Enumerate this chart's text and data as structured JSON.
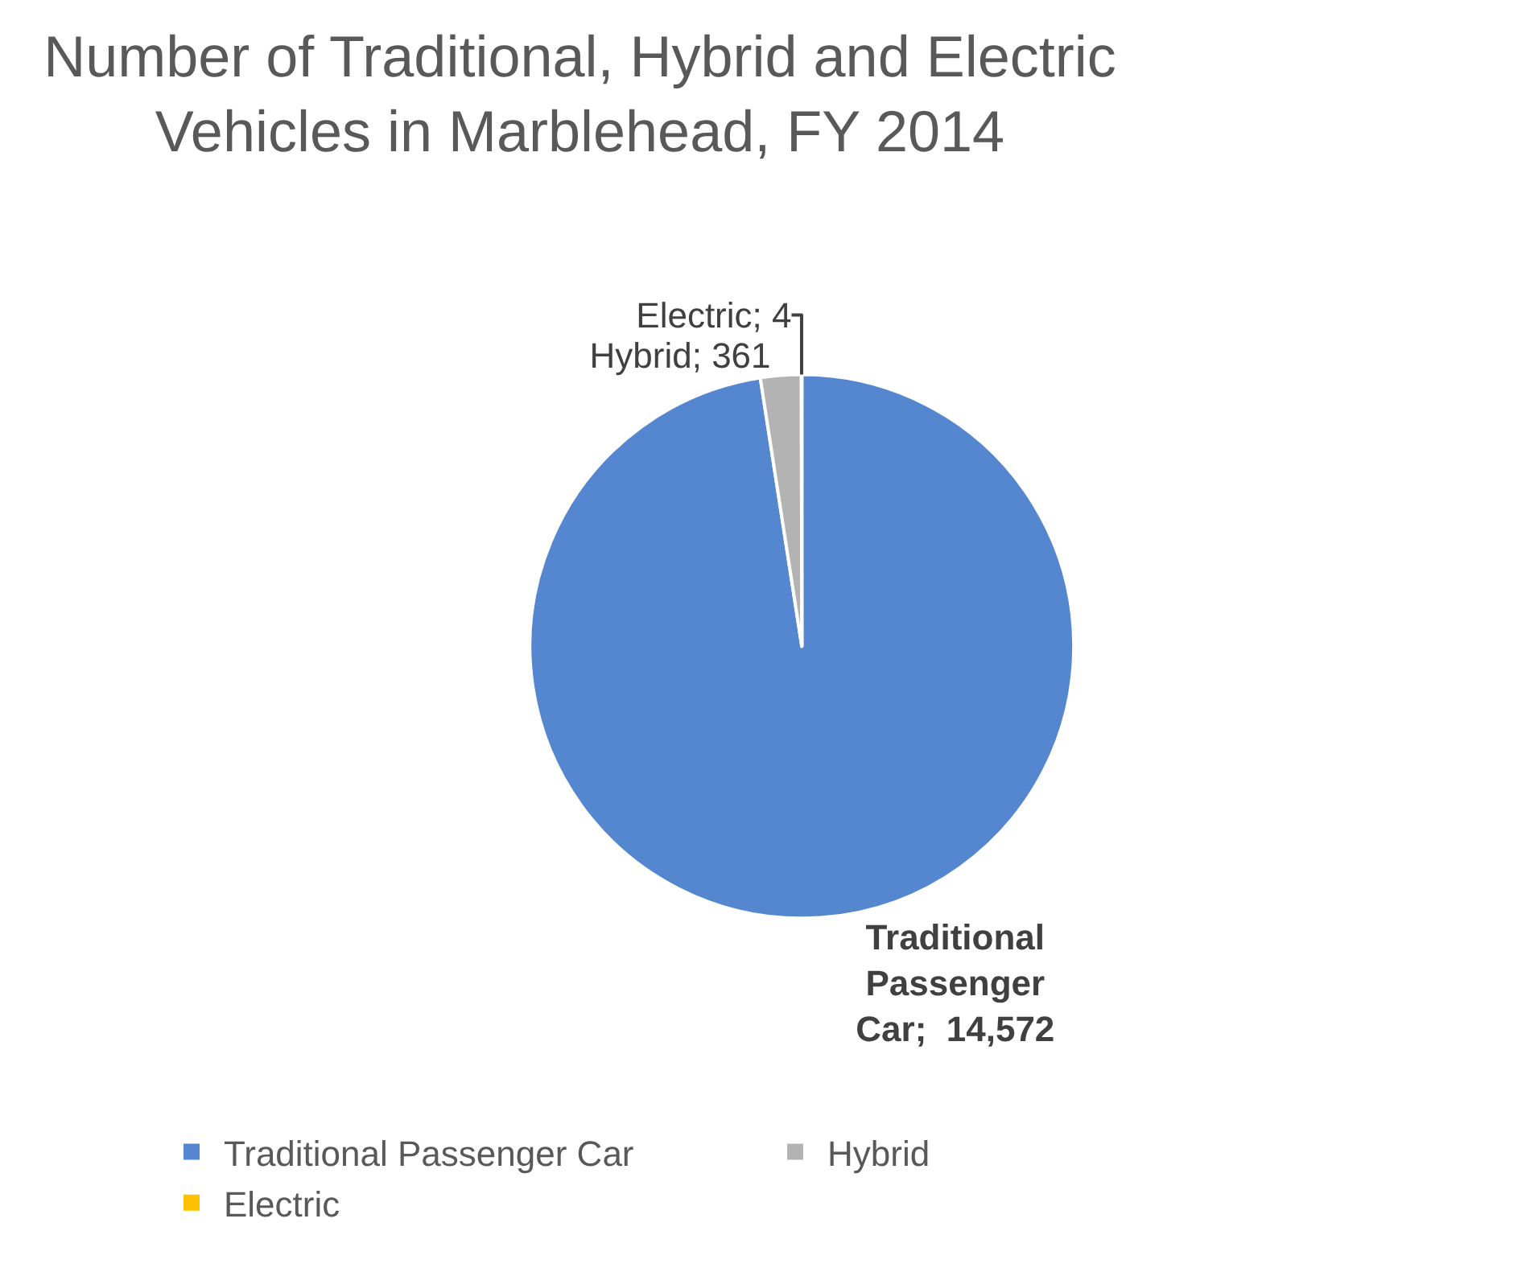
{
  "chart_data": {
    "type": "pie",
    "title": "Number of Traditional, Hybrid and Electric\nVehicles in Marblehead, FY 2014",
    "categories": [
      "Traditional Passenger Car",
      "Hybrid",
      "Electric"
    ],
    "values": [
      14572,
      361,
      4
    ],
    "colors": [
      "#5587d1",
      "#b3b3b3",
      "#ffc000"
    ],
    "value_labels": [
      "Traditional Passenger Car;  14,572",
      "Hybrid; 361",
      "Electric; 4"
    ],
    "legend": "bottom"
  }
}
